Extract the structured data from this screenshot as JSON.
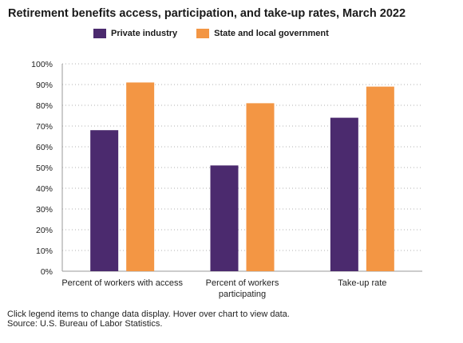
{
  "title": "Retirement benefits access, participation, and take-up rates, March 2022",
  "legend": [
    {
      "name": "Private industry",
      "color": "#4b2a6e"
    },
    {
      "name": "State and local government",
      "color": "#f39644"
    }
  ],
  "chart_data": {
    "type": "bar",
    "title": "Retirement benefits access, participation, and take-up rates, March 2022",
    "categories": [
      [
        "Percent of workers with access"
      ],
      [
        "Percent of workers",
        "participating"
      ],
      [
        "Take-up rate"
      ]
    ],
    "series": [
      {
        "name": "Private industry",
        "color": "#4b2a6e",
        "values": [
          68,
          51,
          74
        ]
      },
      {
        "name": "State and local government",
        "color": "#f39644",
        "values": [
          91,
          81,
          89
        ]
      }
    ],
    "ylim": [
      0,
      100
    ],
    "yticks": [
      "0%",
      "10%",
      "20%",
      "30%",
      "40%",
      "50%",
      "60%",
      "70%",
      "80%",
      "90%",
      "100%"
    ],
    "grid": true,
    "legend_position": "top"
  },
  "footer": {
    "note": "Click legend items to change data display. Hover over chart to view data.",
    "source": "Source: U.S. Bureau of Labor Statistics."
  }
}
